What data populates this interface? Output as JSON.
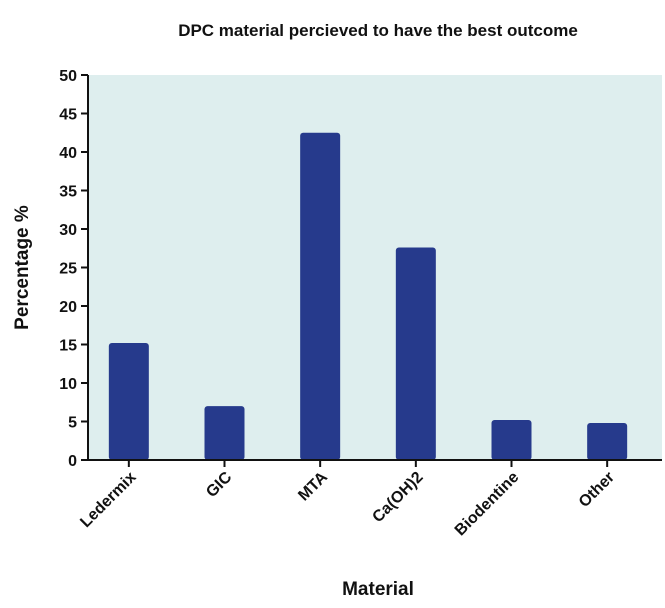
{
  "chart_data": {
    "type": "bar",
    "title": "DPC material percieved to have the best outcome",
    "xlabel": "Material",
    "ylabel": "Percentage %",
    "categories": [
      "Ledermix",
      "GIC",
      "MTA",
      "Ca(OH)2",
      "Biodentine",
      "Other"
    ],
    "values": [
      15.2,
      7.0,
      42.5,
      27.6,
      5.2,
      4.8
    ],
    "ylim": [
      0,
      50
    ],
    "yticks": [
      "0",
      "5",
      "10",
      "15",
      "20",
      "25",
      "30",
      "35",
      "40",
      "45",
      "50"
    ],
    "grid": false,
    "colors": {
      "bar": "#263a8c",
      "plot_background": "#deeeee",
      "axis": "#111111"
    }
  }
}
